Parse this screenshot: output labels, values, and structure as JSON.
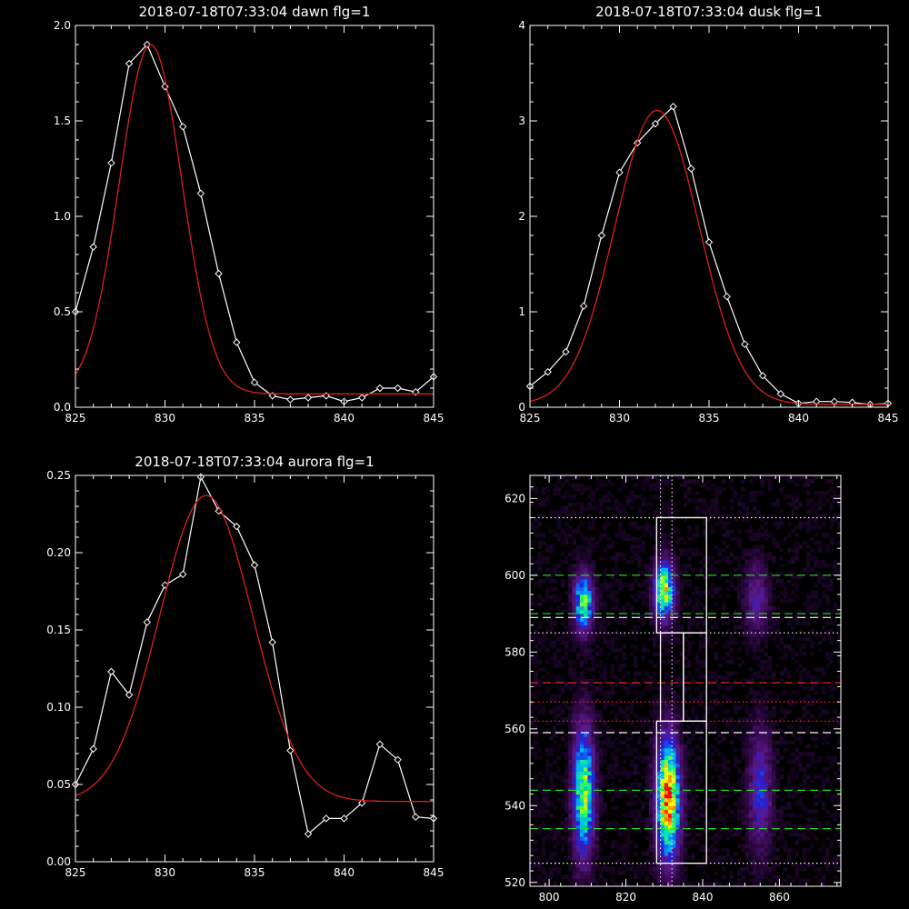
{
  "chart_data": [
    {
      "id": "dawn",
      "type": "line",
      "title": "2018-07-18T07:33:04 dawn flg=1",
      "xlim": [
        825,
        845
      ],
      "ylim": [
        0,
        2.0
      ],
      "xticks": [
        825,
        830,
        835,
        840,
        845
      ],
      "xtick_labels": [
        "825",
        "830",
        "835",
        "840",
        "845"
      ],
      "yticks": [
        0,
        0.5,
        1.0,
        1.5,
        2.0
      ],
      "ytick_labels": [
        "0.0",
        "0.5",
        "1.0",
        "1.5",
        "2.0"
      ],
      "series": [
        {
          "style": "data",
          "color": "#ffffff",
          "marker": "diamond",
          "x": [
            825,
            826,
            827,
            828,
            829,
            830,
            831,
            832,
            833,
            834,
            835,
            836,
            837,
            838,
            839,
            840,
            841,
            842,
            843,
            844,
            845
          ],
          "y": [
            0.5,
            0.84,
            1.28,
            1.8,
            1.9,
            1.68,
            1.47,
            1.12,
            0.7,
            0.34,
            0.13,
            0.06,
            0.04,
            0.05,
            0.06,
            0.03,
            0.05,
            0.1,
            0.1,
            0.08,
            0.16
          ]
        },
        {
          "style": "fit",
          "color": "#dd1f1f",
          "fit": {
            "amp": 1.83,
            "center": 829.2,
            "sigma": 1.75,
            "offset": 0.07
          }
        }
      ]
    },
    {
      "id": "dusk",
      "type": "line",
      "title": "2018-07-18T07:33:04 dusk flg=1",
      "xlim": [
        825,
        845
      ],
      "ylim": [
        0,
        4
      ],
      "xticks": [
        825,
        830,
        835,
        840,
        845
      ],
      "xtick_labels": [
        "825",
        "830",
        "835",
        "840",
        "845"
      ],
      "yticks": [
        0,
        1,
        2,
        3,
        4
      ],
      "ytick_labels": [
        "0",
        "1",
        "2",
        "3",
        "4"
      ],
      "series": [
        {
          "style": "data",
          "color": "#ffffff",
          "marker": "diamond",
          "x": [
            825,
            826,
            827,
            828,
            829,
            830,
            831,
            832,
            833,
            834,
            835,
            836,
            837,
            838,
            839,
            840,
            841,
            842,
            843,
            844,
            845
          ],
          "y": [
            0.22,
            0.37,
            0.58,
            1.06,
            1.8,
            2.46,
            2.77,
            2.97,
            3.15,
            2.5,
            1.73,
            1.16,
            0.66,
            0.33,
            0.14,
            0.04,
            0.06,
            0.06,
            0.05,
            0.03,
            0.04
          ]
        },
        {
          "style": "fit",
          "color": "#dd1f1f",
          "fit": {
            "amp": 3.08,
            "center": 832.1,
            "sigma": 2.35,
            "offset": 0.03
          }
        }
      ]
    },
    {
      "id": "aurora",
      "type": "line",
      "title": "2018-07-18T07:33:04 aurora flg=1",
      "xlim": [
        825,
        845
      ],
      "ylim": [
        0,
        0.25
      ],
      "xticks": [
        825,
        830,
        835,
        840,
        845
      ],
      "xtick_labels": [
        "825",
        "830",
        "835",
        "840",
        "845"
      ],
      "yticks": [
        0,
        0.05,
        0.1,
        0.15,
        0.2,
        0.25
      ],
      "ytick_labels": [
        "0.00",
        "0.05",
        "0.10",
        "0.15",
        "0.20",
        "0.25"
      ],
      "series": [
        {
          "style": "data",
          "color": "#ffffff",
          "marker": "diamond",
          "x": [
            825,
            826,
            827,
            828,
            829,
            830,
            831,
            832,
            833,
            834,
            835,
            836,
            837,
            838,
            839,
            840,
            841,
            842,
            843,
            844,
            845
          ],
          "y": [
            0.05,
            0.073,
            0.123,
            0.108,
            0.155,
            0.179,
            0.186,
            0.249,
            0.227,
            0.217,
            0.192,
            0.142,
            0.072,
            0.018,
            0.028,
            0.028,
            0.038,
            0.076,
            0.066,
            0.029,
            0.028
          ]
        },
        {
          "style": "fit",
          "color": "#dd1f1f",
          "fit": {
            "amp": 0.198,
            "center": 832.3,
            "sigma": 2.6,
            "offset": 0.039
          }
        }
      ]
    },
    {
      "id": "spectral-image",
      "type": "heatmap",
      "title": "",
      "xlim": [
        795,
        876
      ],
      "ylim": [
        519,
        626
      ],
      "xticks": [
        800,
        820,
        840,
        860
      ],
      "xtick_labels": [
        "800",
        "820",
        "840",
        "860"
      ],
      "yticks": [
        520,
        540,
        560,
        580,
        600,
        620
      ],
      "ytick_labels": [
        "520",
        "540",
        "560",
        "580",
        "600",
        "620"
      ],
      "colormap": [
        "#000000",
        "#3a0a55",
        "#5a1a88",
        "#2020e0",
        "#00a0ff",
        "#00e0c0",
        "#40ff40",
        "#ffff00",
        "#ff8000",
        "#ff0000"
      ],
      "blobs": [
        {
          "x": 809,
          "y": 593,
          "sx": 1.6,
          "sy": 5,
          "amp": 0.62
        },
        {
          "x": 809,
          "y": 544,
          "sx": 1.8,
          "sy": 11,
          "amp": 0.68
        },
        {
          "x": 830,
          "y": 596,
          "sx": 1.8,
          "sy": 5,
          "amp": 0.7
        },
        {
          "x": 831,
          "y": 542,
          "sx": 2.0,
          "sy": 10,
          "amp": 0.95
        },
        {
          "x": 854,
          "y": 594,
          "sx": 2.0,
          "sy": 6,
          "amp": 0.22
        },
        {
          "x": 855,
          "y": 544,
          "sx": 2.0,
          "sy": 10,
          "amp": 0.3
        }
      ],
      "boxes": [
        {
          "x0": 828,
          "x1": 841,
          "y0": 585,
          "y1": 615
        },
        {
          "x0": 829,
          "x1": 835,
          "y0": 562,
          "y1": 585
        },
        {
          "x0": 835,
          "x1": 841,
          "y0": 562,
          "y1": 585
        },
        {
          "x0": 828,
          "x1": 841,
          "y0": 525,
          "y1": 562
        }
      ],
      "hlines": [
        {
          "y": 615,
          "color": "#ffffff",
          "style": "dotted"
        },
        {
          "y": 600,
          "color": "#22dd22",
          "style": "dashed"
        },
        {
          "y": 590,
          "color": "#22dd22",
          "style": "dashed"
        },
        {
          "y": 589,
          "color": "#ffffff",
          "style": "dashed"
        },
        {
          "y": 585,
          "color": "#ffffff",
          "style": "dotted"
        },
        {
          "y": 572,
          "color": "#ee2222",
          "style": "dashed"
        },
        {
          "y": 567,
          "color": "#ee2222",
          "style": "dotted"
        },
        {
          "y": 562,
          "color": "#ee2222",
          "style": "dotted"
        },
        {
          "y": 559,
          "color": "#ffffff",
          "style": "dashed"
        },
        {
          "y": 544,
          "color": "#22dd22",
          "style": "dashed"
        },
        {
          "y": 534,
          "color": "#22dd22",
          "style": "dashed"
        },
        {
          "y": 525,
          "color": "#ffffff",
          "style": "dotted"
        }
      ],
      "vlines": [
        {
          "x": 829,
          "color": "#ffffff",
          "style": "dotted"
        },
        {
          "x": 832,
          "color": "#ffffff",
          "style": "dotted"
        }
      ]
    }
  ]
}
